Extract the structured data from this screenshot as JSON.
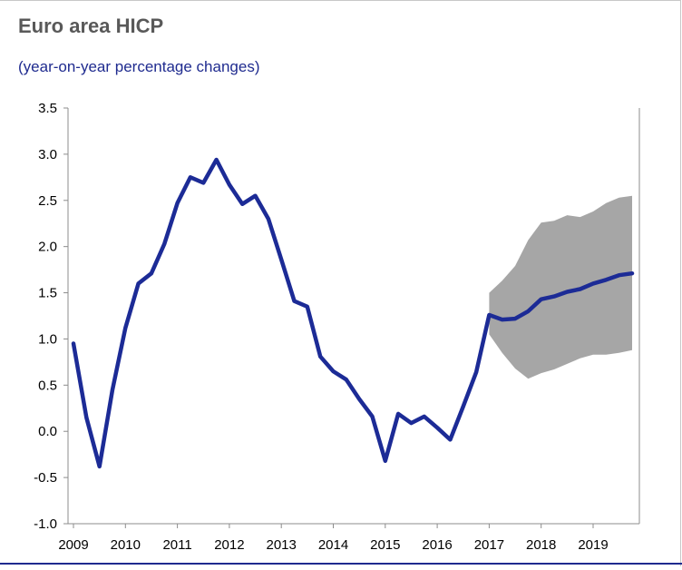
{
  "colors": {
    "series": "#1c2b96",
    "band": "#a6a6a6",
    "axis": "#8c8c8c",
    "title": "#595959",
    "subtitle": "#1f2b8f"
  },
  "chart_data": {
    "type": "line",
    "title": "Euro area HICP",
    "subtitle": "(year-on-year percentage changes)",
    "xlabel": "",
    "ylabel": "",
    "ylim": [
      -1.0,
      3.5
    ],
    "xlim": [
      2009.0,
      2019.95
    ],
    "grid": false,
    "legend": "none",
    "y_ticks": [
      "3.5",
      "3.0",
      "2.5",
      "2.0",
      "1.5",
      "1.0",
      "0.5",
      "0.0",
      "-0.5",
      "-1.0"
    ],
    "y_tick_values": [
      3.5,
      3.0,
      2.5,
      2.0,
      1.5,
      1.0,
      0.5,
      0.0,
      -0.5,
      -1.0
    ],
    "x_ticks": [
      "2009",
      "2010",
      "2011",
      "2012",
      "2013",
      "2014",
      "2015",
      "2016",
      "2017",
      "2018",
      "2019"
    ],
    "x_tick_values": [
      2009,
      2010,
      2011,
      2012,
      2013,
      2014,
      2015,
      2016,
      2017,
      2018,
      2019
    ],
    "series": [
      {
        "name": "HICP",
        "x": [
          2009.0,
          2009.25,
          2009.5,
          2009.75,
          2010.0,
          2010.25,
          2010.5,
          2010.75,
          2011.0,
          2011.25,
          2011.5,
          2011.75,
          2012.0,
          2012.25,
          2012.5,
          2012.75,
          2013.0,
          2013.25,
          2013.5,
          2013.75,
          2014.0,
          2014.25,
          2014.5,
          2014.75,
          2015.0,
          2015.25,
          2015.5,
          2015.75,
          2016.0,
          2016.25,
          2016.5,
          2016.75,
          2017.0,
          2017.25,
          2017.5,
          2017.75,
          2018.0,
          2018.25,
          2018.5,
          2018.75,
          2019.0,
          2019.25,
          2019.5,
          2019.75
        ],
        "values": [
          0.95,
          0.15,
          -0.38,
          0.45,
          1.12,
          1.6,
          1.71,
          2.03,
          2.47,
          2.75,
          2.69,
          2.94,
          2.67,
          2.46,
          2.55,
          2.3,
          1.86,
          1.41,
          1.35,
          0.81,
          0.65,
          0.56,
          0.35,
          0.16,
          -0.32,
          0.19,
          0.09,
          0.16,
          0.04,
          -0.09,
          0.27,
          0.64,
          1.26,
          1.21,
          1.22,
          1.3,
          1.43,
          1.46,
          1.51,
          1.54,
          1.6,
          1.64,
          1.69,
          1.71
        ]
      }
    ],
    "range_band": {
      "name": "projection range",
      "x": [
        2017.0,
        2017.25,
        2017.5,
        2017.75,
        2018.0,
        2018.25,
        2018.5,
        2018.75,
        2019.0,
        2019.25,
        2019.5,
        2019.75
      ],
      "lower": [
        1.05,
        0.85,
        0.68,
        0.57,
        0.63,
        0.67,
        0.73,
        0.79,
        0.83,
        0.83,
        0.85,
        0.88
      ],
      "upper": [
        1.5,
        1.63,
        1.79,
        2.07,
        2.26,
        2.28,
        2.34,
        2.32,
        2.38,
        2.47,
        2.53,
        2.55
      ]
    }
  }
}
